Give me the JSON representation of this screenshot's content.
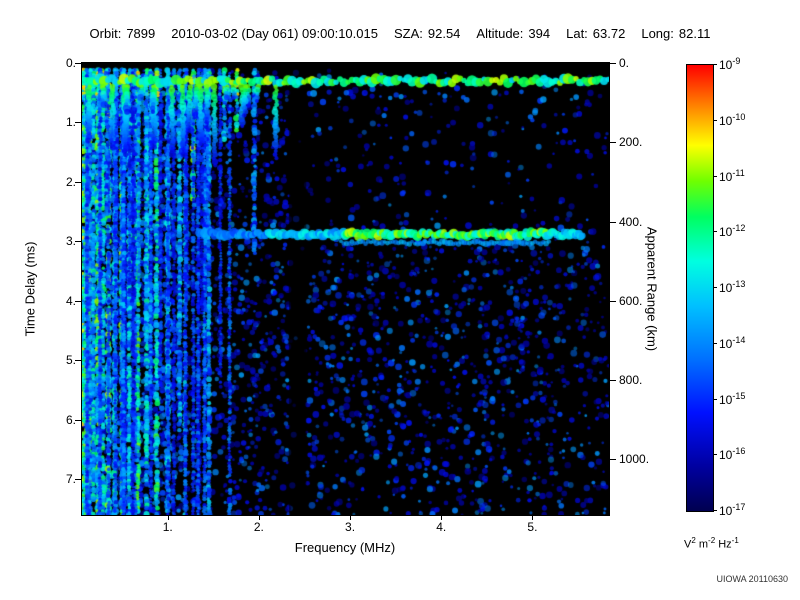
{
  "header": {
    "orbit_label": "Orbit:",
    "orbit_value": "7899",
    "datetime": "2010-03-02 (Day 061) 09:00:10.015",
    "sza_label": "SZA:",
    "sza_value": "92.54",
    "altitude_label": "Altitude:",
    "altitude_value": "394",
    "lat_label": "Lat:",
    "lat_value": "63.72",
    "long_label": "Long:",
    "long_value": "82.11"
  },
  "footer": {
    "credit": "UIOWA 20110630"
  },
  "chart_data": {
    "type": "heatmap",
    "title": "",
    "xlabel": "Frequency (MHz)",
    "ylabel_left": "Time Delay (ms)",
    "ylabel_right": "Apparent Range (km)",
    "x_range_mhz": [
      0.06,
      5.84
    ],
    "y_range_ms": [
      0,
      7.6
    ],
    "km_per_ms": 150,
    "x_ticks": [
      1,
      2,
      3,
      4,
      5
    ],
    "x_tick_labels": [
      "1.",
      "2.",
      "3.",
      "4.",
      "5."
    ],
    "y_ticks_ms": [
      0,
      1,
      2,
      3,
      4,
      5,
      6,
      7
    ],
    "y_tick_labels": [
      "0.",
      "1.",
      "2.",
      "3.",
      "4.",
      "5.",
      "6.",
      "7."
    ],
    "right_ticks_km": [
      0,
      200,
      400,
      600,
      800,
      1000
    ],
    "right_tick_labels": [
      "0.",
      "200.",
      "400.",
      "600.",
      "800.",
      "1000."
    ],
    "grid": false,
    "legend_position": "right-colorbar",
    "colorbar": {
      "scale": "log",
      "base": "10",
      "tick_exponents": [
        -9,
        -10,
        -11,
        -12,
        -13,
        -14,
        -15,
        -16,
        -17
      ],
      "unit_parts": [
        {
          "base": "V",
          "sup": "2"
        },
        {
          "base": "m",
          "sup": "-2"
        },
        {
          "base": "Hz",
          "sup": "-1"
        }
      ]
    },
    "render": {
      "seed": 1337,
      "background": "#000000",
      "colormap_stops": [
        {
          "t": 0.0,
          "c": "#000050"
        },
        {
          "t": 0.1,
          "c": "#0000a0"
        },
        {
          "t": 0.22,
          "c": "#0010ff"
        },
        {
          "t": 0.34,
          "c": "#0070ff"
        },
        {
          "t": 0.46,
          "c": "#00c0ff"
        },
        {
          "t": 0.56,
          "c": "#00ffe0"
        },
        {
          "t": 0.66,
          "c": "#00ff60"
        },
        {
          "t": 0.74,
          "c": "#70ff00"
        },
        {
          "t": 0.82,
          "c": "#ffff00"
        },
        {
          "t": 0.91,
          "c": "#ff8000"
        },
        {
          "t": 1.0,
          "c": "#ff0000"
        }
      ],
      "speckle": {
        "count": 3400,
        "t_min": 0.1,
        "t_max": 0.42,
        "delay_min": 0.12
      },
      "left_wash": {
        "count": 1300,
        "f_range": [
          0.06,
          1.15
        ],
        "t_min": 0.14,
        "t_max": 0.45
      },
      "sparse_region": {
        "f_min": 2.45,
        "delay_max": 2.72,
        "keep": 0.35
      },
      "dark_band_mhz": [
        2.33,
        2.52
      ],
      "top_band": {
        "delay_ms": 0.3,
        "t_min": 0.48,
        "t_max": 0.8
      },
      "drips": {
        "count": 24,
        "f_min": 0.08,
        "f_max": 2.2,
        "len_ms_max": 1.2
      },
      "dot_row": {
        "f_min": 2.6,
        "f_max": 5.6,
        "delay_ms": 0.55,
        "prob": 0.55
      },
      "echo": {
        "delay_ms": 2.88,
        "segments": [
          {
            "f0": 1.35,
            "f1": 2.1,
            "t": 0.36
          },
          {
            "f0": 2.1,
            "f1": 2.95,
            "t": 0.46
          },
          {
            "f0": 2.95,
            "f1": 5.15,
            "t": 0.66
          },
          {
            "f0": 5.15,
            "f1": 5.55,
            "t": 0.5
          }
        ]
      },
      "major_stripes": [
        {
          "f": 0.075,
          "t": 0.68,
          "d1": 7.6
        },
        {
          "f": 0.105,
          "t": 0.58,
          "d1": 7.6
        },
        {
          "f": 0.14,
          "t": 0.64,
          "d1": 7.6
        },
        {
          "f": 0.185,
          "t": 0.52,
          "d1": 7.6
        },
        {
          "f": 0.235,
          "t": 0.62,
          "d1": 7.6
        },
        {
          "f": 0.29,
          "t": 0.55,
          "d1": 7.6
        },
        {
          "f": 0.35,
          "t": 0.64,
          "d1": 7.6
        },
        {
          "f": 0.42,
          "t": 0.5,
          "d1": 7.6
        },
        {
          "f": 0.5,
          "t": 0.62,
          "d1": 7.6
        },
        {
          "f": 0.58,
          "t": 0.48,
          "d1": 7.6
        },
        {
          "f": 0.67,
          "t": 0.6,
          "d1": 7.6
        },
        {
          "f": 0.77,
          "t": 0.52,
          "d1": 7.6
        },
        {
          "f": 0.88,
          "t": 0.58,
          "d1": 7.6
        },
        {
          "f": 1.0,
          "t": 0.48,
          "d1": 7.6
        },
        {
          "f": 1.13,
          "t": 0.44,
          "d1": 6.2
        },
        {
          "f": 1.28,
          "t": 0.66,
          "d1": 2.3
        },
        {
          "f": 1.45,
          "t": 0.42,
          "d1": 7.6
        },
        {
          "f": 1.62,
          "t": 0.5,
          "d1": 1.3
        },
        {
          "f": 1.76,
          "t": 0.66,
          "d1": 1.15
        },
        {
          "f": 1.95,
          "t": 0.36,
          "d1": 3.2
        }
      ],
      "minor_stripes": {
        "count": 38,
        "f_min": 0.07,
        "f_max": 1.7,
        "t_min": 0.22,
        "t_max": 0.42
      }
    }
  }
}
